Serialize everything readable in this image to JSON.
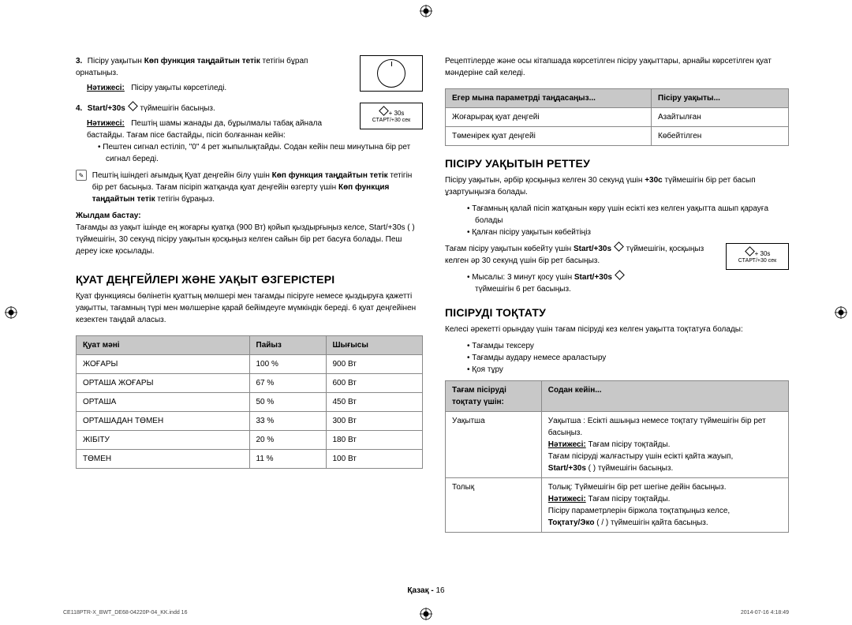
{
  "left": {
    "step3": {
      "num": "3.",
      "text_a": "Пісіру уақытын ",
      "text_b_bold": "Көп функция таңдайтын тетік",
      "text_c": " тетігін бұрап орнатыңыз.",
      "result_label": "Нәтижесі:",
      "result_text": "Пісіру уақыты көрсетіледі."
    },
    "step4": {
      "num": "4.",
      "label_bold": "Start/+30s",
      "text_after": " түймешігін басыңыз.",
      "result_label": "Нәтижесі:",
      "result_text": "Пештің шамы жанады да, бұрылмалы табақ айнала бастайды. Тағам пісе бастайды, пісіп болғаннан кейін:",
      "bullet": "Пештен сигнал естіліп, \"0\" 4 рет жыпылықтайды. Содан кейін пеш минутына бір рет сигнал береді."
    },
    "start_box_top": "+ 30s",
    "start_box_bottom": "СТАРТ/+30 сек",
    "note1": {
      "text_a": "Пештің ішіндегі ағымдық Қуат деңгейін білу үшін ",
      "text_b_bold": "Көп функция таңдайтын тетік",
      "text_c": " тетігін бір рет басыңыз. Тағам пісіріп жатқанда қуат деңгейін өзгерту үшін ",
      "text_d_bold": "Көп функция таңдайтын тетік",
      "text_e": " тетігін бұраңыз."
    },
    "quick_start_label": "Жылдам бастау:",
    "quick_start_text": "Тағамды аз уақыт ішінде ең жоғарғы қуатқа (900 Вт) қойып қыздырғыңыз келсе, Start/+30s (   ) түймешігін, 30 секунд пісіру уақытын қосқыңыз келген сайын бір рет басуға болады. Пеш дереу іске қосылады.",
    "h2": "ҚУАТ ДЕҢГЕЙЛЕРІ ЖӘНЕ УАҚЫТ ӨЗГЕРІСТЕРІ",
    "body": "Қуат функциясы бөлінетін қуаттың мөлшері мен тағамды пісіруге немесе қыздыруға қажетті уақытты, тағамның түрі мен мөлшеріне қарай бейімдеуге мүмкіндік береді. 6 қуат деңгейінен кезектен таңдай аласыз.",
    "power_table": {
      "headers": [
        "Қуат мәні",
        "Пайыз",
        "Шығысы"
      ],
      "rows": [
        [
          "ЖОҒАРЫ",
          "100 %",
          "900 Вт"
        ],
        [
          "ОРТАША ЖОҒАРЫ",
          "67 %",
          "600 Вт"
        ],
        [
          "ОРТАША",
          "50 %",
          "450 Вт"
        ],
        [
          "ОРТАШАДАН ТӨМЕН",
          "33 %",
          "300 Вт"
        ],
        [
          "ЖІБІТУ",
          "20 %",
          "180 Вт"
        ],
        [
          "ТӨМЕН",
          "11 %",
          "100 Вт"
        ]
      ]
    }
  },
  "right": {
    "intro": "Рецептілерде және осы кітапшада көрсетілген пісіру уақыттары, арнайы көрсетілген қуат мәндеріне сай келеді.",
    "param_table": {
      "headers": [
        "Егер мына параметрді таңдасаңыз...",
        "Пісіру уақыты..."
      ],
      "rows": [
        [
          "Жоғарырақ қуат деңгейі",
          "Азайтылған"
        ],
        [
          "Төменірек қуат деңгейі",
          "Көбейтілген"
        ]
      ]
    },
    "h2a": "ПІСІРУ УАҚЫТЫН РЕТТЕУ",
    "adjust_text_a": "Пісіру уақытын, әрбір қосқыңыз келген 30 секунд үшін ",
    "adjust_text_bold": "+30с",
    "adjust_text_b": " түймешігін бір рет басып ұзартуыңызға болады.",
    "adjust_bullets": [
      "Тағамның қалай пісіп жатқанын көру үшін есікті кез келген уақытта ашып қарауға болады",
      "Қалған пісіру уақытын көбейтіңіз"
    ],
    "adjust2_a": "Тағам пісіру уақытын көбейту үшін ",
    "adjust2_bold": "Start/+30s",
    "adjust2_b": " түймешігін, қосқыңыз келген әр 30 секунд үшін бір рет басыңыз.",
    "adjust2_bullet_a": "Мысалы: 3 минут қосу үшін ",
    "adjust2_bullet_bold": "Start/+30s",
    "adjust2_bullet_b": " түймешігін 6 рет басыңыз.",
    "start_box_top": "+ 30s",
    "start_box_bottom": "СТАРТ/+30 сек",
    "h2b": "ПІСІРУДІ ТОҚТАТУ",
    "stop_intro": "Келесі әрекетті орындау үшін тағам пісіруді кез келген уақытта тоқтатуға болады:",
    "stop_bullets": [
      "Тағамды тексеру",
      "Тағамды аудару немесе араластыру",
      "Қоя тұру"
    ],
    "stop_table": {
      "headers": [
        "Тағам пісіруді тоқтату үшін:",
        "Содан кейін..."
      ],
      "rows": [
        {
          "c0": "Уақытша",
          "c1_lines": [
            {
              "t": "Уақытша : Есікті ашыңыз немесе тоқтату түймешігін бір рет басыңыз."
            },
            {
              "label": "Нәтижесі:",
              "t": "Тағам пісіру тоқтайды."
            },
            {
              "t": "Тағам пісіруді жалғастыру үшін есікті қайта жауып, "
            },
            {
              "bold": "Start/+30s",
              "t": " (   ) түймешігін басыңыз."
            }
          ]
        },
        {
          "c0": "Толық",
          "c1_lines": [
            {
              "t": "Толық: Түймешігін бір рет шегіне дейін басыңыз."
            },
            {
              "label": "Нәтижесі:",
              "t": "Тағам пісіру тоқтайды."
            },
            {
              "t": "Пісіру параметрлерін біржола тоқтатқыңыз келсе,"
            },
            {
              "bold": "Тоқтату/Эко",
              "t": " (   /   ) түймешігін қайта басыңыз."
            }
          ]
        }
      ]
    }
  },
  "footer": {
    "lang": "Қазақ",
    "sep": " - ",
    "page": "16"
  },
  "meta": {
    "left": "CE118PTR-X_BWT_DE68-04220P-04_KK.indd   16",
    "right": "2014-07-16    4:18:49"
  }
}
